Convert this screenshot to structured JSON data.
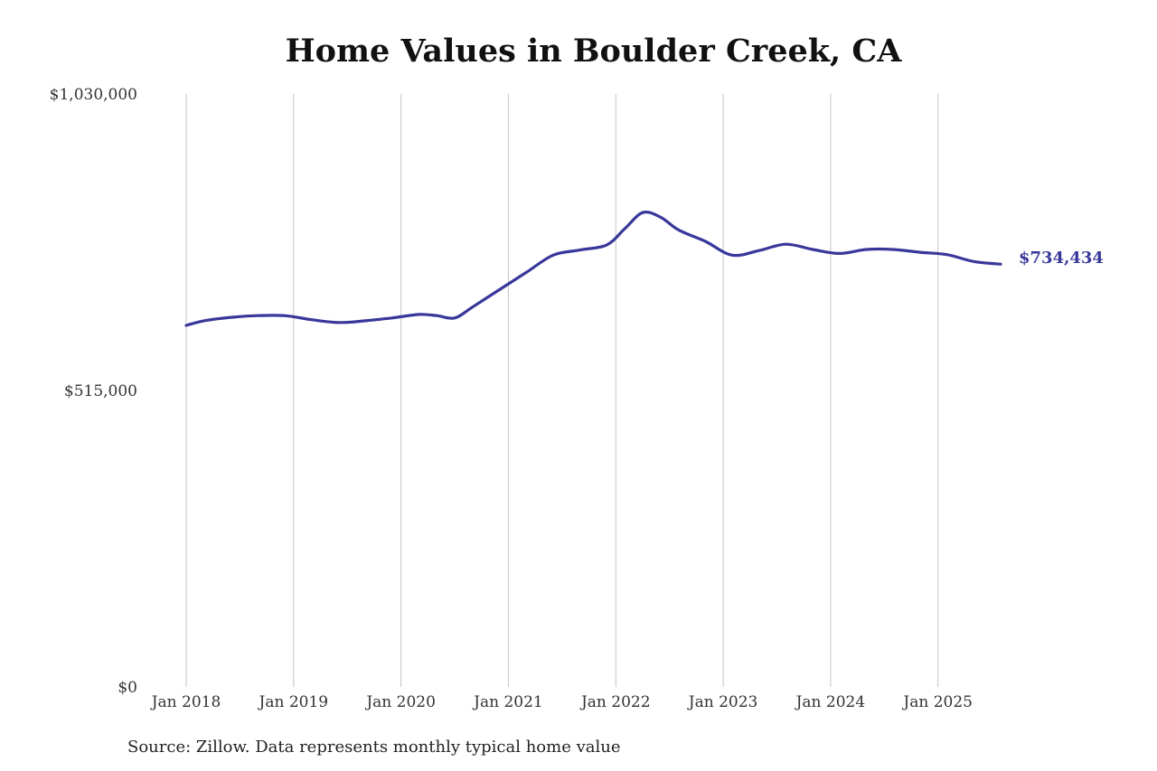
{
  "chart_data": {
    "type": "line",
    "title": "Home Values in Boulder Creek, CA",
    "source": "Source: Zillow. Data represents monthly typical home value",
    "xlabel": "",
    "ylabel": "",
    "x_ticks": [
      "Jan 2018",
      "Jan 2019",
      "Jan 2020",
      "Jan 2021",
      "Jan 2022",
      "Jan 2023",
      "Jan 2024",
      "Jan 2025"
    ],
    "y_ticks": [
      "$0",
      "$515,000",
      "$1,030,000"
    ],
    "y_tick_values": [
      0,
      515000,
      1030000
    ],
    "ylim": [
      0,
      1030000
    ],
    "xlim": [
      "2018-01",
      "2025-08"
    ],
    "grid": "vertical",
    "last_label": "$734,434",
    "series": [
      {
        "color": "#38379a",
        "points": [
          [
            "2018-01",
            628000
          ],
          [
            "2018-03",
            636000
          ],
          [
            "2018-06",
            642000
          ],
          [
            "2018-09",
            645000
          ],
          [
            "2018-12",
            645000
          ],
          [
            "2019-03",
            638000
          ],
          [
            "2019-06",
            633000
          ],
          [
            "2019-09",
            636000
          ],
          [
            "2019-12",
            641000
          ],
          [
            "2020-03",
            647000
          ],
          [
            "2020-05",
            645000
          ],
          [
            "2020-07",
            641000
          ],
          [
            "2020-09",
            660000
          ],
          [
            "2020-12",
            690000
          ],
          [
            "2021-03",
            720000
          ],
          [
            "2021-06",
            750000
          ],
          [
            "2021-09",
            759000
          ],
          [
            "2021-12",
            768000
          ],
          [
            "2022-02",
            796000
          ],
          [
            "2022-04",
            824000
          ],
          [
            "2022-06",
            816000
          ],
          [
            "2022-08",
            794000
          ],
          [
            "2022-11",
            774000
          ],
          [
            "2023-02",
            750000
          ],
          [
            "2023-05",
            758000
          ],
          [
            "2023-08",
            769000
          ],
          [
            "2023-11",
            760000
          ],
          [
            "2024-02",
            753000
          ],
          [
            "2024-05",
            760000
          ],
          [
            "2024-08",
            760000
          ],
          [
            "2024-11",
            755000
          ],
          [
            "2025-02",
            751000
          ],
          [
            "2025-05",
            739000
          ],
          [
            "2025-08",
            734434
          ]
        ]
      }
    ]
  }
}
